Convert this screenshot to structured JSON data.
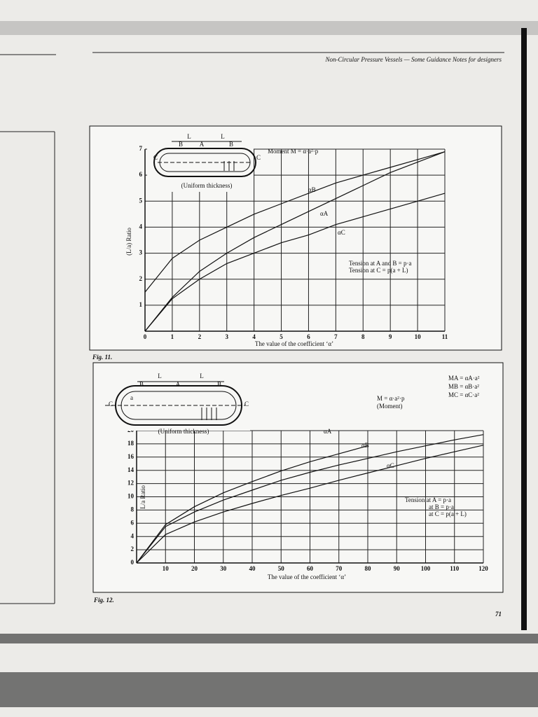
{
  "header": "Non-Circular Pressure Vessels — Some Guidance Notes for designers",
  "page_number": "71",
  "chart_data": [
    {
      "type": "line",
      "caption": "Fig. 11.",
      "x_label": "The value of the coefficient ‘α’",
      "y_label": "(L/a) Ratio",
      "x": [
        0,
        1,
        2,
        3,
        4,
        5,
        6,
        7,
        8,
        9,
        10,
        11
      ],
      "series": [
        {
          "name": "αB",
          "color": "#111111",
          "values": [
            1.5,
            2.8,
            3.5,
            4.0,
            4.5,
            4.9,
            5.3,
            5.7,
            6.0,
            6.3,
            6.6,
            6.9
          ]
        },
        {
          "name": "αA",
          "color": "#111111",
          "values": [
            0,
            1.3,
            2.3,
            3.0,
            3.6,
            4.1,
            4.6,
            5.1,
            5.6,
            6.1,
            6.5,
            6.9
          ]
        },
        {
          "name": "αC",
          "color": "#111111",
          "values": [
            0,
            1.25,
            2.0,
            2.6,
            3.0,
            3.4,
            3.7,
            4.1,
            4.4,
            4.7,
            5.0,
            5.3
          ]
        }
      ],
      "xlim": [
        0,
        11
      ],
      "ylim": [
        0,
        7
      ],
      "xticks": [
        0,
        1,
        2,
        3,
        4,
        5,
        6,
        7,
        8,
        9,
        10,
        11
      ],
      "yticks": [
        1,
        2,
        3,
        4,
        5,
        6,
        7
      ],
      "grid": true,
      "annotations": [
        "L",
        "L",
        "B",
        "A",
        "B",
        "C",
        "C",
        "Moment M = α·a²·p",
        "(Uniform thickness)",
        "Tension at A and B = p·a",
        "Tension at C = p(a + L)"
      ]
    },
    {
      "type": "line",
      "caption": "Fig. 12.",
      "x_label": "The value of the coefficient ‘α’",
      "y_label": "L/a Ratio",
      "x": [
        0,
        10,
        20,
        30,
        40,
        50,
        60,
        70,
        80,
        90,
        100,
        110,
        120
      ],
      "series": [
        {
          "name": "αA",
          "color": "#111111",
          "values": [
            0,
            5.8,
            8.5,
            10.6,
            12.3,
            13.9,
            15.3,
            16.5,
            17.7,
            null,
            null,
            null,
            null
          ]
        },
        {
          "name": "αB",
          "color": "#111111",
          "values": [
            0,
            5.5,
            7.7,
            9.5,
            11.0,
            12.5,
            13.7,
            14.8,
            15.8,
            16.8,
            17.7,
            18.6,
            19.4
          ]
        },
        {
          "name": "αC",
          "color": "#111111",
          "values": [
            0,
            4.3,
            6.2,
            7.7,
            9.0,
            10.2,
            11.3,
            12.5,
            13.6,
            14.7,
            15.8,
            16.8,
            17.8
          ]
        }
      ],
      "xlim": [
        0,
        120
      ],
      "ylim": [
        0,
        20
      ],
      "xticks": [
        10,
        20,
        30,
        40,
        50,
        60,
        70,
        80,
        90,
        100,
        110,
        120
      ],
      "yticks": [
        0,
        2,
        4,
        6,
        8,
        10,
        12,
        14,
        16,
        18,
        20
      ],
      "grid": true,
      "annotations": [
        "L",
        "L",
        "B",
        "A",
        "B",
        "C",
        "C",
        "a",
        "(Uniform thickness)",
        "MA = αA·a²",
        "MB = αB·a²",
        "MC = αC·a²",
        "M = α·a²·p",
        "(Moment)",
        "Tension at A = p·a",
        "at B = p·a",
        "at C = p(a + L)"
      ]
    }
  ]
}
